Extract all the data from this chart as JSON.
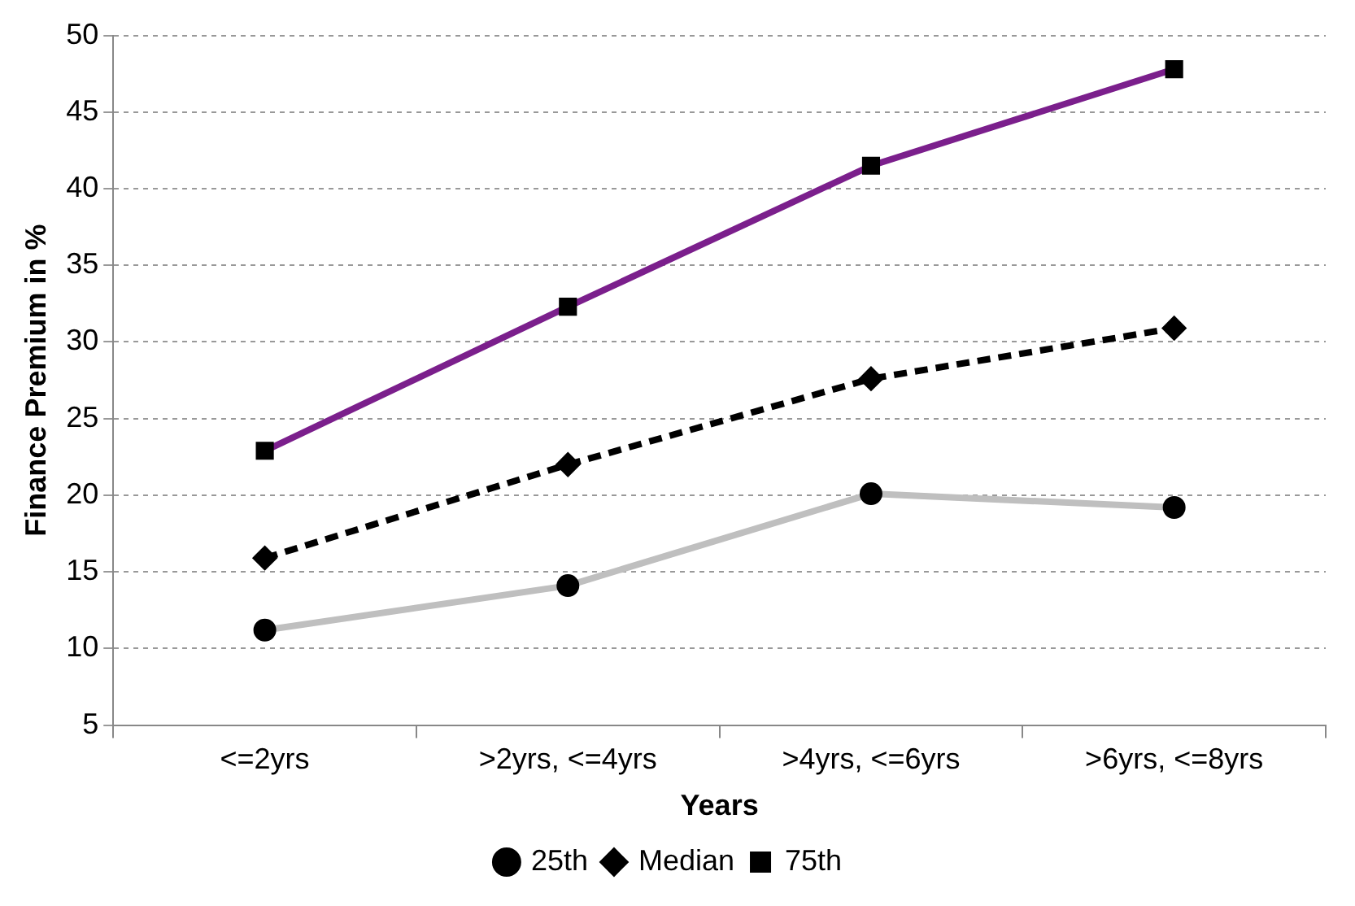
{
  "chart_data": {
    "type": "line",
    "xlabel": "Years",
    "ylabel": "Finance Premium in %",
    "categories": [
      "<=2yrs",
      ">2yrs, <=4yrs",
      ">4yrs, <=6yrs",
      ">6yrs, <=8yrs"
    ],
    "series": [
      {
        "name": "25th",
        "color": "#bfbfbf",
        "values": [
          11.2,
          14.1,
          20.1,
          19.2
        ],
        "marker": "circle",
        "line_style": "solid"
      },
      {
        "name": "Median",
        "color": "#000000",
        "values": [
          15.9,
          22,
          27.6,
          30.9
        ],
        "marker": "diamond",
        "line_style": "dashed"
      },
      {
        "name": "75th",
        "color": "#7b1f8c",
        "values": [
          22.9,
          32.3,
          41.5,
          47.8
        ],
        "marker": "square",
        "line_style": "solid"
      }
    ],
    "ylim": [
      5,
      50
    ],
    "yticks": [
      5,
      10,
      15,
      20,
      25,
      30,
      35,
      40,
      45,
      50
    ],
    "grid": "y",
    "legend": "bottom"
  }
}
